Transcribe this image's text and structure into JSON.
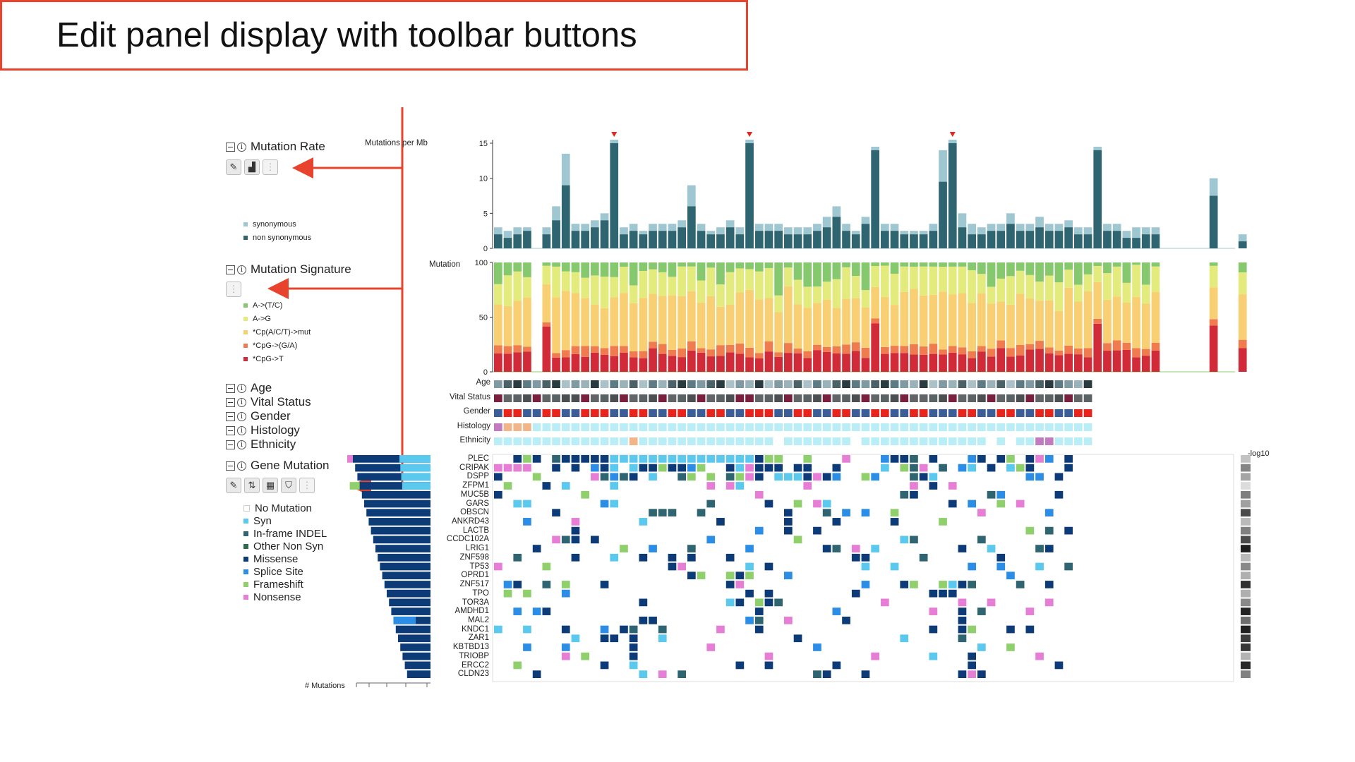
{
  "callout": {
    "text": "Edit panel display with toolbar buttons"
  },
  "sections": {
    "mutation_rate": {
      "title": "Mutation Rate"
    },
    "mutation_signature": {
      "title": "Mutation Signature"
    },
    "age": {
      "title": "Age"
    },
    "vital_status": {
      "title": "Vital Status"
    },
    "gender": {
      "title": "Gender"
    },
    "histology": {
      "title": "Histology"
    },
    "ethnicity": {
      "title": "Ethnicity"
    },
    "gene_mutation": {
      "title": "Gene Mutation"
    }
  },
  "rate_legend": [
    {
      "label": "synonymous",
      "color": "#9fc7d2"
    },
    {
      "label": "non synonymous",
      "color": "#2e6570"
    }
  ],
  "signature_legend": [
    {
      "label": "A->(T/C)",
      "color": "#86c86e"
    },
    {
      "label": "A->G",
      "color": "#e3eb7c"
    },
    {
      "label": "*Cp(A/C/T)->mut",
      "color": "#f8cf73"
    },
    {
      "label": "*CpG->(G/A)",
      "color": "#f07b4e"
    },
    {
      "label": "*CpG->T",
      "color": "#d12b3a"
    }
  ],
  "gene_legend": [
    {
      "label": "No Mutation",
      "color": "#ffffff"
    },
    {
      "label": "Syn",
      "color": "#5bc8ed"
    },
    {
      "label": "In-frame INDEL",
      "color": "#2e6570"
    },
    {
      "label": "Other Non Syn",
      "color": "#2e6b4e"
    },
    {
      "label": "Missense",
      "color": "#0d3b78"
    },
    {
      "label": "Splice Site",
      "color": "#2b8de6"
    },
    {
      "label": "Frameshift",
      "color": "#8fd06d"
    },
    {
      "label": "Nonsense",
      "color": "#e77ed6"
    }
  ],
  "axes": {
    "rate_title": "Mutations per Mb",
    "rate_ticks": [
      "15",
      "10",
      "5",
      "0"
    ],
    "sig_title": "Mutation",
    "sig_ticks": [
      "100",
      "50",
      "0"
    ],
    "minus_log10": "-log10",
    "num_mutations": "# Mutations"
  },
  "tracks": [
    "Age",
    "Vital Status",
    "Gender",
    "Histology",
    "Ethnicity"
  ],
  "genes": [
    "PLEC",
    "CRIPAK",
    "DSPP",
    "ZFPM1",
    "MUC5B",
    "GARS",
    "OBSCN",
    "ANKRD43",
    "LACTB",
    "CCDC102A",
    "LRIG1",
    "ZNF598",
    "TP53",
    "OPRD1",
    "ZNF517",
    "TPO",
    "TOR3A",
    "AMDHD1",
    "MAL2",
    "KNDC1",
    "ZAR1",
    "KBTBD13",
    "TRIOBP",
    "ERCC2",
    "CLDN23"
  ],
  "chart_data": {
    "type": "bar",
    "mutation_rate_nonsyn": [
      2,
      1.5,
      2,
      2.5,
      0,
      2,
      4,
      9,
      2.5,
      2.5,
      3,
      4,
      15,
      2,
      2.5,
      2,
      2.5,
      2.5,
      2.5,
      3,
      6,
      2.5,
      2,
      2,
      3,
      2,
      15,
      2.5,
      2.5,
      2.5,
      2,
      2,
      2,
      2.5,
      3,
      4.5,
      2.5,
      2,
      3.5,
      14,
      2.5,
      2.5,
      2,
      2,
      2,
      2.5,
      9.5,
      15,
      3,
      2,
      2,
      2.5,
      2.5,
      3.5,
      2.5,
      2.5,
      3,
      2.5,
      2.5,
      3,
      2,
      2,
      14,
      2.5,
      2.5,
      1.5,
      1.5,
      2,
      2,
      0,
      0,
      0,
      0,
      0,
      7.5,
      0,
      0,
      1
    ],
    "mutation_rate_syn": [
      1,
      1,
      1,
      0.5,
      0,
      1,
      2,
      4.5,
      1,
      1,
      1,
      1,
      0.5,
      1,
      1,
      0.5,
      1,
      1,
      1,
      1,
      3,
      1,
      0.5,
      1,
      1,
      1,
      0.5,
      1,
      1,
      1,
      1,
      1,
      1,
      1,
      1.5,
      1.5,
      1,
      0.5,
      1,
      0.5,
      1,
      1,
      0.5,
      0.5,
      0.5,
      1,
      4.5,
      0.5,
      2,
      1.5,
      1,
      1,
      1,
      1.5,
      1,
      1,
      1.5,
      1,
      1,
      1,
      1,
      1,
      0.5,
      1,
      1,
      1,
      1.5,
      1,
      1,
      0,
      0,
      0,
      0,
      0,
      2.5,
      0,
      0,
      1
    ],
    "mutation_signature": {
      "ylim": [
        0,
        100
      ]
    }
  }
}
